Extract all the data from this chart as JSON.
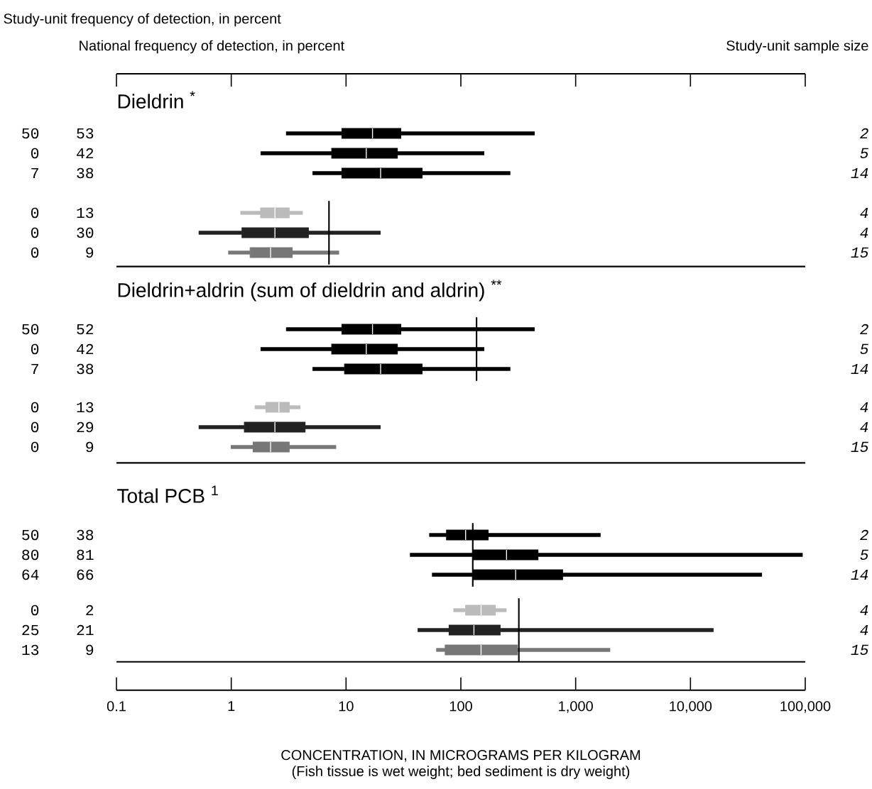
{
  "chart_data": [
    {
      "type": "box",
      "orientation": "horizontal",
      "log": "x",
      "xlim": [
        0.1,
        100000
      ],
      "xticks": [
        {
          "value": 0.1,
          "label": null
        },
        {
          "value": 1,
          "label": null
        },
        {
          "value": 10,
          "label": null
        },
        {
          "value": 100,
          "label": null
        },
        {
          "value": 1000,
          "label": null
        },
        {
          "value": 10000,
          "label": null
        },
        {
          "value": 100000,
          "label": null
        }
      ],
      "tick_labels": "y",
      "title": "Dieldrin $^{*}$",
      "categories": [
        "53",
        "42",
        "38"
      ],
      "colors": [
        "#000000",
        "#000000",
        "#000000"
      ],
      "boxes": [
        {
          "low": 3.0,
          "q1": 9.2,
          "median": 17,
          "q3": 30,
          "high": 440
        },
        {
          "low": 1.8,
          "q1": 7.5,
          "median": 15,
          "q3": 28,
          "high": 160
        },
        {
          "low": 5.1,
          "q1": 9.2,
          "median": 20,
          "q3": 46,
          "high": 270
        }
      ],
      "annotations": [
        "50",
        "0",
        "7",
        "2",
        "5",
        "14",
        "Study-unit frequency of detection, in percent",
        "National frequency of detection, in percent",
        "Study-unit sample size"
      ]
    },
    {
      "type": "box",
      "orientation": "horizontal",
      "log": "x",
      "xlim": [
        0.1,
        100000
      ],
      "tick_labels": "y",
      "categories": [
        "13",
        "30",
        "9"
      ],
      "colors": [
        "#bbbbbb",
        "#222222",
        "#777777"
      ],
      "boxes": [
        {
          "low": 1.2,
          "q1": 1.8,
          "median": 2.4,
          "q3": 3.2,
          "high": 4.2
        },
        {
          "low": 0.52,
          "q1": 1.24,
          "median": 2.4,
          "q3": 4.7,
          "high": 20
        },
        {
          "low": 0.94,
          "q1": 1.46,
          "median": 2.2,
          "q3": 3.4,
          "high": 8.7
        }
      ],
      "ref_lines": [
        {
          "axis": "x",
          "value": 7.1
        }
      ],
      "annotations": [
        "0",
        "0",
        "0",
        "4",
        "4",
        "15"
      ]
    },
    {
      "type": "box",
      "orientation": "horizontal",
      "log": "x",
      "xlim": [
        0.1,
        100000
      ],
      "tick_labels": "y",
      "title": "Dieldrin+aldrin (sum of dieldrin and aldrin) $^{**}$",
      "categories": [
        "52",
        "42",
        "38"
      ],
      "colors": [
        "#000000",
        "#000000",
        "#000000"
      ],
      "boxes": [
        {
          "low": 3.0,
          "q1": 9.2,
          "median": 17,
          "q3": 30,
          "high": 440
        },
        {
          "low": 1.8,
          "q1": 7.5,
          "median": 15,
          "q3": 28,
          "high": 160
        },
        {
          "low": 5.1,
          "q1": 9.7,
          "median": 20,
          "q3": 46,
          "high": 270
        }
      ],
      "ref_lines": [
        {
          "axis": "x",
          "value": 137
        }
      ],
      "annotations": [
        "50",
        "0",
        "7",
        "2",
        "5",
        "14"
      ]
    },
    {
      "type": "box",
      "orientation": "horizontal",
      "log": "x",
      "xlim": [
        0.1,
        100000
      ],
      "tick_labels": "y",
      "categories": [
        "13",
        "29",
        "9"
      ],
      "colors": [
        "#bbbbbb",
        "#222222",
        "#777777"
      ],
      "boxes": [
        {
          "low": 1.6,
          "q1": 2.0,
          "median": 2.6,
          "q3": 3.2,
          "high": 4.0
        },
        {
          "low": 0.52,
          "q1": 1.3,
          "median": 2.4,
          "q3": 4.4,
          "high": 20
        },
        {
          "low": 0.99,
          "q1": 1.55,
          "median": 2.2,
          "q3": 3.2,
          "high": 8.2
        }
      ],
      "annotations": [
        "0",
        "0",
        "0",
        "4",
        "4",
        "15"
      ]
    },
    {
      "type": "box",
      "orientation": "horizontal",
      "log": "x",
      "xlim": [
        0.1,
        100000
      ],
      "tick_labels": "y",
      "title": "Total PCB $^{1}$",
      "categories": [
        "38",
        "81",
        "66"
      ],
      "colors": [
        "#000000",
        "#000000",
        "#000000"
      ],
      "boxes": [
        {
          "low": 53,
          "q1": 75,
          "median": 110,
          "q3": 173,
          "high": 1650
        },
        {
          "low": 36,
          "q1": 127,
          "median": 250,
          "q3": 470,
          "high": 95000
        },
        {
          "low": 56,
          "q1": 127,
          "median": 300,
          "q3": 770,
          "high": 42000
        }
      ],
      "ref_lines": [
        {
          "axis": "x",
          "value": 127
        }
      ],
      "annotations": [
        "50",
        "80",
        "64",
        "2",
        "5",
        "14"
      ]
    },
    {
      "type": "box",
      "orientation": "horizontal",
      "log": "x",
      "xlim": [
        0.1,
        100000
      ],
      "xticks": [
        {
          "value": 0.1,
          "label": "0.1"
        },
        {
          "value": 1,
          "label": "1"
        },
        {
          "value": 10,
          "label": "10"
        },
        {
          "value": 100,
          "label": "100"
        },
        {
          "value": 1000,
          "label": "1,000"
        },
        {
          "value": 10000,
          "label": "10,000"
        },
        {
          "value": 100000,
          "label": "100,000"
        }
      ],
      "categories": [
        "2",
        "21",
        "9"
      ],
      "colors": [
        "#bbbbbb",
        "#222222",
        "#777777"
      ],
      "boxes": [
        {
          "low": 86,
          "q1": 110,
          "median": 150,
          "q3": 200,
          "high": 250
        },
        {
          "low": 42,
          "q1": 79,
          "median": 130,
          "q3": 220,
          "high": 15900
        },
        {
          "low": 61,
          "q1": 73,
          "median": 150,
          "q3": 310,
          "high": 2000
        }
      ],
      "ref_lines": [
        {
          "axis": "x",
          "value": 320
        }
      ],
      "xlabel": "CONCENTRATION, IN MICROGRAMS PER KILOGRAM",
      "annotations": [
        "0",
        "25",
        "13",
        "4",
        "4",
        "15",
        "(Fish tissue is wet weight; bed sediment is dry weight)"
      ]
    }
  ]
}
